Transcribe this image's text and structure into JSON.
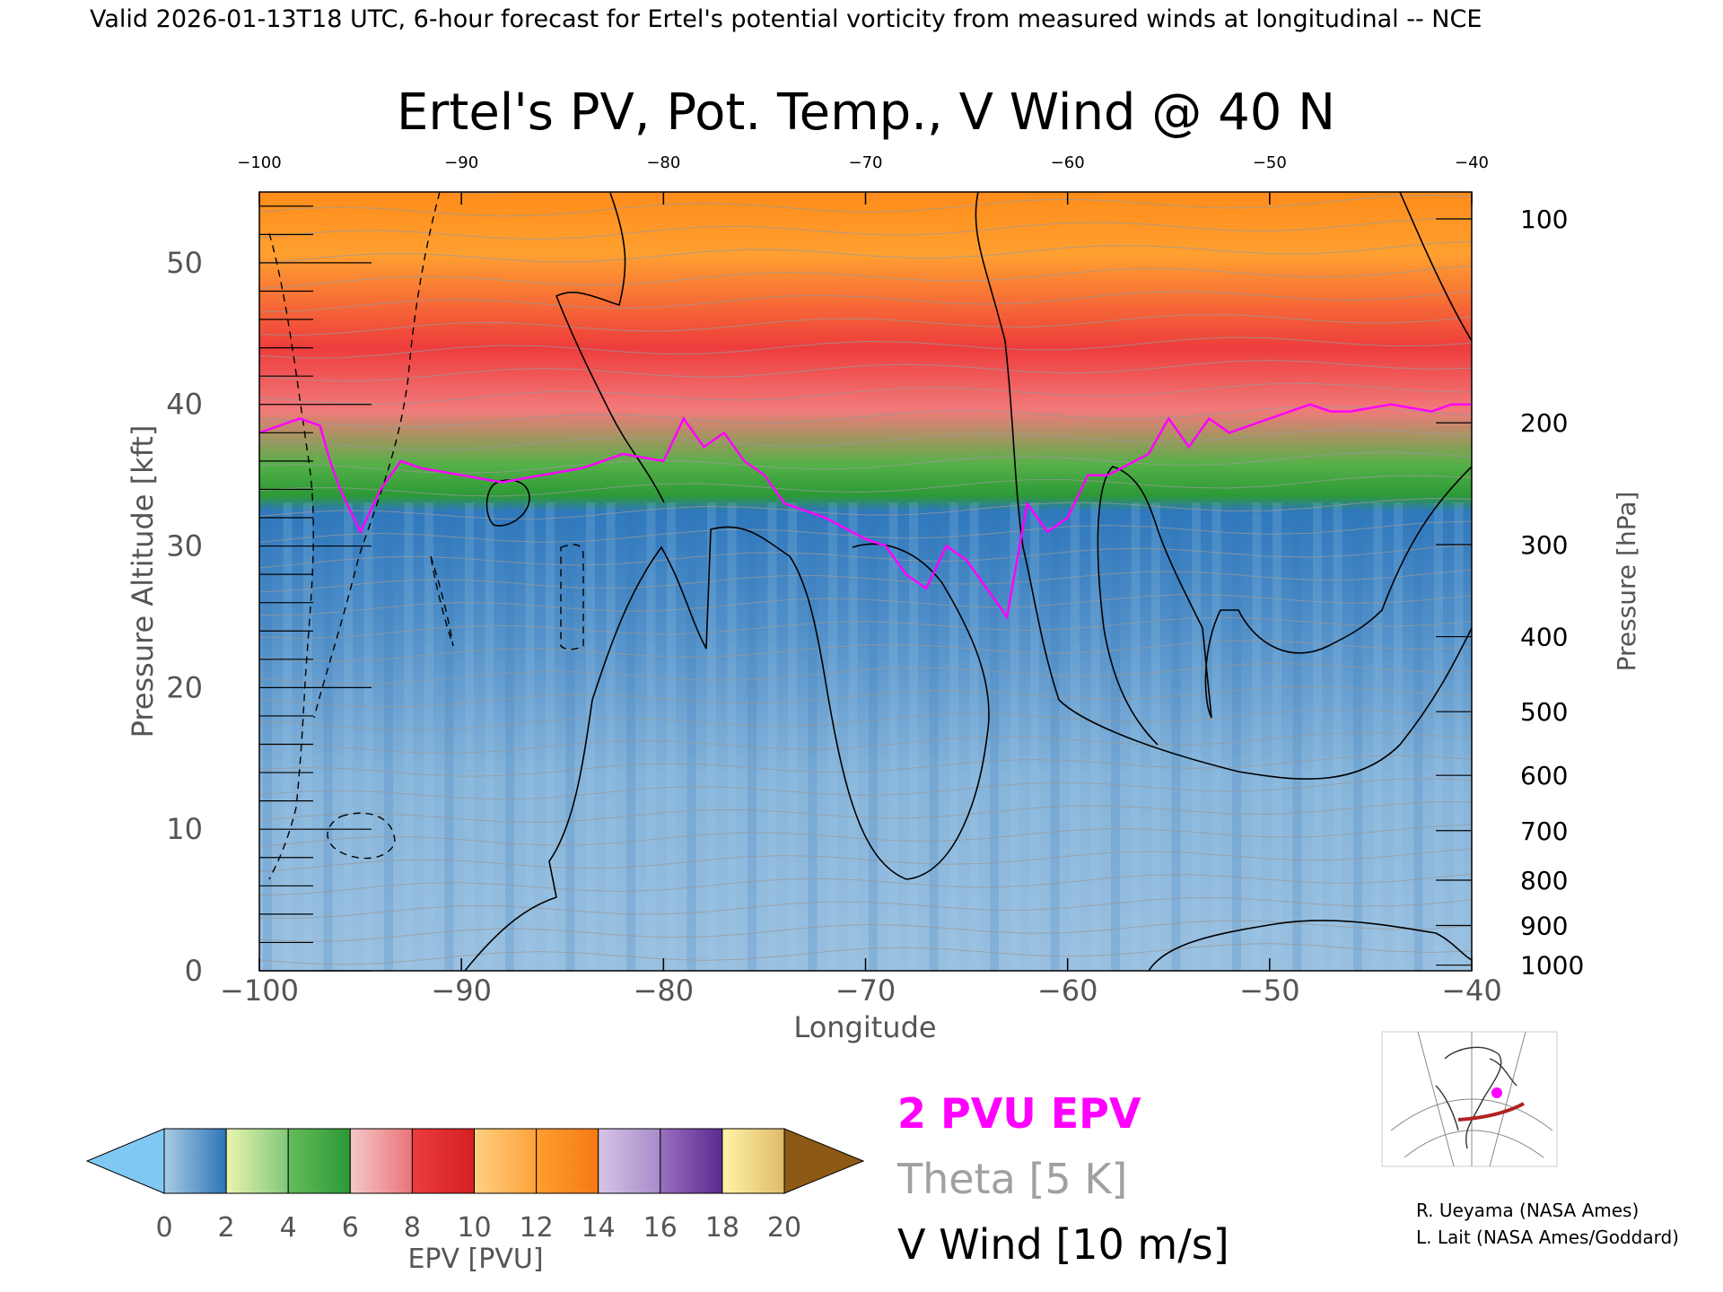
{
  "header": {
    "caption": "Valid 2026-01-13T18 UTC, 6-hour forecast for Ertel's potential vorticity from measured winds at longitudinal -- NCE"
  },
  "chart_data": {
    "type": "heatmap",
    "title": "Ertel's PV, Pot. Temp., V Wind @ 40 N",
    "xlabel": "Longitude",
    "ylabel_left": "Pressure Altitude [kft]",
    "ylabel_right": "Pressure [hPa]",
    "xlim": [
      -100,
      -40
    ],
    "ylim": [
      0,
      55
    ],
    "x_ticks": [
      -100,
      -90,
      -80,
      -70,
      -60,
      -50,
      -40
    ],
    "x_ticks_top": [
      -100,
      -90,
      -80,
      -70,
      -60,
      -50,
      -40
    ],
    "y_ticks_left": [
      0,
      10,
      20,
      30,
      40,
      50
    ],
    "y_ticks_right": [
      {
        "label": "1000",
        "alt_kft": 0.4
      },
      {
        "label": "900",
        "alt_kft": 3.2
      },
      {
        "label": "800",
        "alt_kft": 6.4
      },
      {
        "label": "700",
        "alt_kft": 9.9
      },
      {
        "label": "600",
        "alt_kft": 13.8
      },
      {
        "label": "500",
        "alt_kft": 18.3
      },
      {
        "label": "400",
        "alt_kft": 23.6
      },
      {
        "label": "300",
        "alt_kft": 30.1
      },
      {
        "label": "200",
        "alt_kft": 38.7
      },
      {
        "label": "100",
        "alt_kft": 53.1
      }
    ],
    "tropopause_2pvu": {
      "lon": [
        -100,
        -98,
        -97,
        -96.5,
        -96,
        -95,
        -94,
        -93,
        -92,
        -90,
        -88,
        -86,
        -84,
        -82,
        -80,
        -79,
        -78,
        -77,
        -76,
        -75,
        -74,
        -72,
        -70,
        -69,
        -68,
        -67,
        -66,
        -65,
        -64,
        -63,
        -62,
        -61,
        -60,
        -59,
        -58,
        -56,
        -55,
        -54,
        -53,
        -52,
        -50,
        -48,
        -47,
        -46,
        -44,
        -42,
        -41,
        -40
      ],
      "alt_kft": [
        38,
        39,
        38.5,
        36,
        34,
        31,
        34,
        36,
        35.5,
        35,
        34.5,
        35,
        35.5,
        36.5,
        36,
        39,
        37,
        38,
        36,
        35,
        33,
        32,
        30.5,
        30,
        28,
        27,
        30,
        29,
        27,
        25,
        33,
        31,
        32,
        35,
        35,
        36.5,
        39,
        37,
        39,
        38,
        39,
        40,
        39.5,
        39.5,
        40,
        39.5,
        40,
        40
      ]
    },
    "colorbar": {
      "label": "EPV [PVU]",
      "tick_labels": [
        0,
        2,
        4,
        6,
        8,
        10,
        12,
        14,
        16,
        18,
        20
      ],
      "under_color": "#80c8f4",
      "over_color": "#8c5a14",
      "bands": [
        {
          "range": [
            0,
            2
          ],
          "colors": [
            "#a9cce4",
            "#2d74b8"
          ]
        },
        {
          "range": [
            2,
            4
          ],
          "colors": [
            "#eaf4b0",
            "#80c878"
          ]
        },
        {
          "range": [
            4,
            6
          ],
          "colors": [
            "#66bb5a",
            "#2a9a36"
          ]
        },
        {
          "range": [
            6,
            8
          ],
          "colors": [
            "#f4c8c8",
            "#ea7478"
          ]
        },
        {
          "range": [
            8,
            10
          ],
          "colors": [
            "#ec3c3c",
            "#d42020"
          ]
        },
        {
          "range": [
            10,
            12
          ],
          "colors": [
            "#ffd080",
            "#ffa23c"
          ]
        },
        {
          "range": [
            12,
            14
          ],
          "colors": [
            "#ff9e30",
            "#f57a14"
          ]
        },
        {
          "range": [
            14,
            16
          ],
          "colors": [
            "#d8c4e6",
            "#a68cca"
          ]
        },
        {
          "range": [
            16,
            18
          ],
          "colors": [
            "#9a70c0",
            "#5a2a90"
          ]
        },
        {
          "range": [
            18,
            20
          ],
          "colors": [
            "#fff4a8",
            "#e0ba6a"
          ]
        }
      ]
    },
    "legend": [
      {
        "label": "2 PVU EPV",
        "color": "#ff00ff"
      },
      {
        "label": "Theta [5 K]",
        "color": "#a0a0a0"
      },
      {
        "label": "V Wind [10 m/s]",
        "color": "#000000"
      }
    ]
  },
  "credits": [
    "R. Ueyama (NASA Ames)",
    "L. Lait (NASA Ames/Goddard)"
  ]
}
